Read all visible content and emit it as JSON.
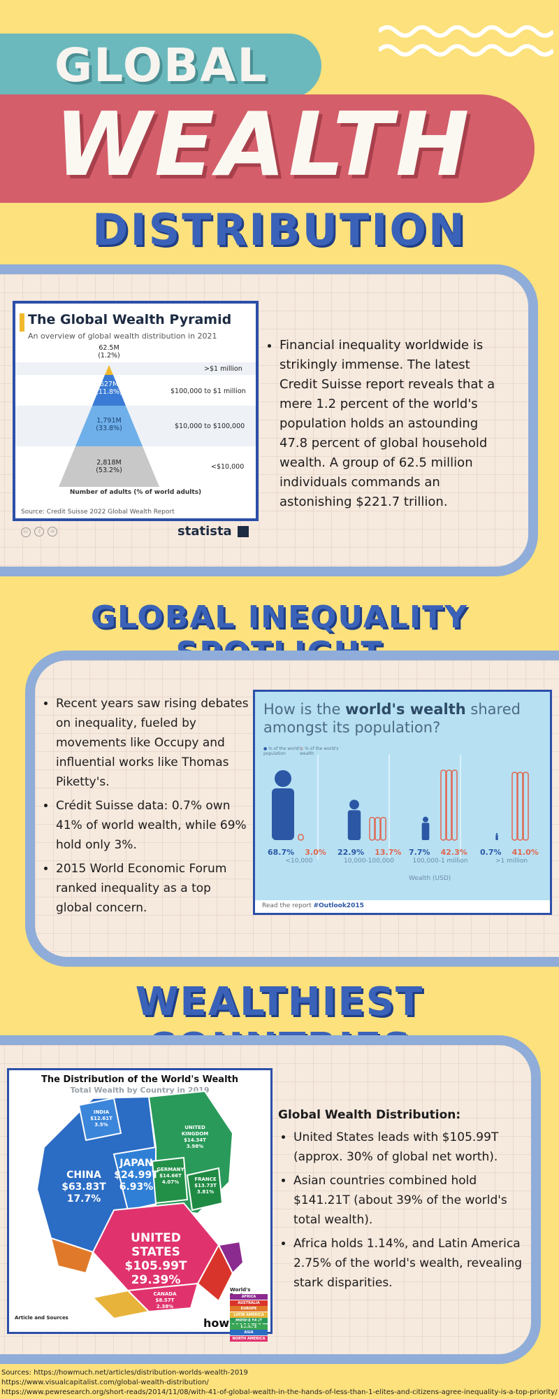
{
  "header": {
    "title_global": "GLOBAL",
    "title_wealth": "WEALTH",
    "title_distribution": "DISTRIBUTION"
  },
  "section1": {
    "text": "Financial inequality worldwide is strikingly immense. The latest Credit Suisse report reveals that a mere 1.2 percent of the world's population holds an astounding 47.8 percent of global household wealth. A group of 62.5 million individuals commands an astonishing $221.7 trillion."
  },
  "pyramid": {
    "title": "The Global Wealth Pyramid",
    "subtitle": "An overview of global wealth distribution in 2021",
    "tiers": [
      {
        "count": "62.5M",
        "pct": "(1.2%)",
        "range": ">$1 million"
      },
      {
        "count": "627M",
        "pct": "(11.8%)",
        "range": "$100,000 to $1 million"
      },
      {
        "count": "1,791M",
        "pct": "(33.8%)",
        "range": "$10,000 to $100,000"
      },
      {
        "count": "2,818M",
        "pct": "(53.2%)",
        "range": "<$10,000"
      }
    ],
    "axis_label": "Number of adults (% of world adults)",
    "source": "Source: Credit Suisse 2022 Global Wealth Report",
    "brand": "statista",
    "colors": {
      "top": "#f0b92b",
      "tier2": "#3a7bd5",
      "tier3": "#6fb0ea",
      "tier4": "#c8c8c8"
    }
  },
  "section2": {
    "heading": "GLOBAL INEQUALITY SPOTLIGHT",
    "bullets": [
      "Recent years saw rising debates on inequality, fueled by movements like Occupy and influential works like Thomas Piketty's.",
      "Crédit Suisse data: 0.7% own 41% of world wealth, while 69% hold only 3%.",
      "2015 World Economic Forum ranked inequality as a top global concern."
    ]
  },
  "share": {
    "title_pre": "How is the ",
    "title_bold": "world's wealth",
    "title_post": " shared amongst its population?",
    "legend_pop": "% of the world's population",
    "legend_wealth": "% of the world's wealth",
    "groups": [
      {
        "pop": "68.7%",
        "wealth": "3.0%",
        "range": "<10,000",
        "pop_frac": 0.687,
        "wealth_frac": 0.03
      },
      {
        "pop": "22.9%",
        "wealth": "13.7%",
        "range": "10,000-100,000",
        "pop_frac": 0.229,
        "wealth_frac": 0.137
      },
      {
        "pop": "7.7%",
        "wealth": "42.3%",
        "range": "100,000-1 million",
        "pop_frac": 0.077,
        "wealth_frac": 0.423
      },
      {
        "pop": "0.7%",
        "wealth": "41.0%",
        "range": ">1 million",
        "pop_frac": 0.007,
        "wealth_frac": 0.41
      }
    ],
    "axis_label": "Wealth (USD)",
    "footer_pre": "Read the report ",
    "footer_tag": "#Outlook2015"
  },
  "section3": {
    "heading": "WEALTHIEST COUNTRIES",
    "subheading": "Global Wealth Distribution:",
    "bullets": [
      "United States leads with $105.99T (approx. 30% of global net worth).",
      "Asian countries combined hold $141.21T (about 39% of the world's total wealth).",
      "Africa holds 1.14%, and Latin America 2.75% of the world's wealth, revealing stark disparities."
    ]
  },
  "distribution": {
    "title": "The Distribution of the World's Wealth",
    "subtitle": "Total Wealth by Country in 2019",
    "regions": [
      {
        "name": "CHINA",
        "value": "$63.83T",
        "pct": "17.7%"
      },
      {
        "name": "JAPAN",
        "value": "$24.99T",
        "pct": "6.93%"
      },
      {
        "name": "UNITED STATES",
        "value": "$105.99T",
        "pct": "29.39%"
      },
      {
        "name": "INDIA",
        "value": "$12.61T",
        "pct": "3.5%"
      },
      {
        "name": "GERMANY",
        "value": "$14.66T",
        "pct": "4.07%"
      },
      {
        "name": "UNITED KINGDOM",
        "value": "$14.34T",
        "pct": "3.98%"
      },
      {
        "name": "FRANCE",
        "value": "$13.73T",
        "pct": "3.81%"
      },
      {
        "name": "CANADA",
        "value": "$8.57T",
        "pct": "2.38%"
      }
    ],
    "legend_title": "World's Region",
    "legend": [
      {
        "name": "AFRICA",
        "color": "#8b2a8f"
      },
      {
        "name": "AUSTRALIA",
        "color": "#d9342b"
      },
      {
        "name": "EUROPE",
        "color": "#e07a2a"
      },
      {
        "name": "LATIN AMERICA AND CARIBBEAN",
        "color": "#e8b33a"
      },
      {
        "name": "MIDDLE EAST",
        "color": "#2a9a5a"
      },
      {
        "name": "EUROPE",
        "color": "#3aa655"
      },
      {
        "name": "ASIA",
        "color": "#2b6cc4"
      },
      {
        "name": "NORTH AMERICA",
        "color": "#e0336e"
      }
    ],
    "articles_label": "Article and Sources",
    "brand_how": "how",
    "brand_much": "much"
  },
  "sources": {
    "line1": "Sources: https://howmuch.net/articles/distribution-worlds-wealth-2019",
    "line2": "https://www.visualcapitalist.com/global-wealth-distribution/",
    "line3": "https://www.pewresearch.org/short-reads/2014/11/08/with-41-of-global-wealth-in-the-hands-of-less-than-1-elites-and-citizens-agree-inequality-is-a-top-priority/"
  }
}
